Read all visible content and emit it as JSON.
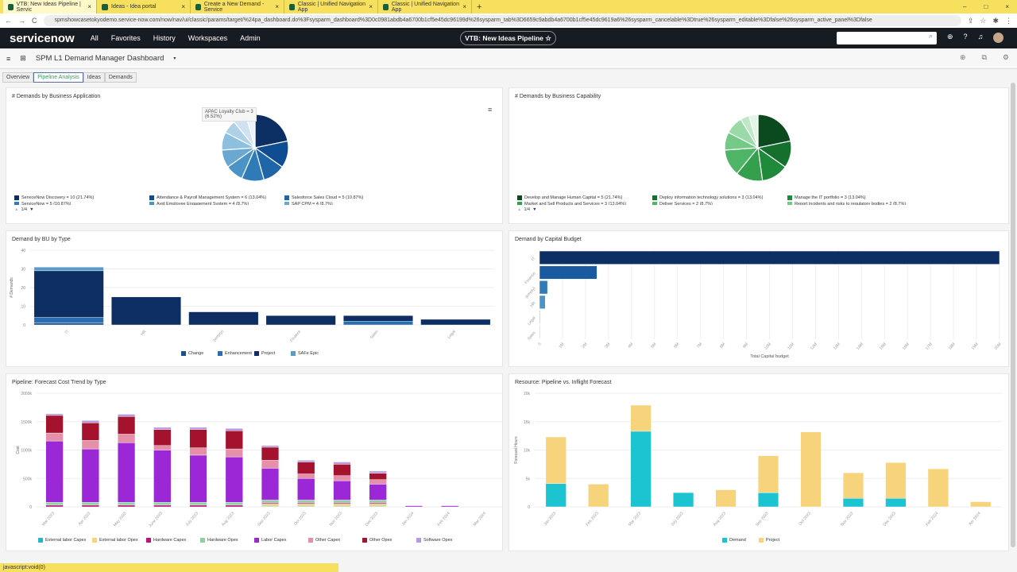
{
  "browser": {
    "tabs": [
      {
        "label": "VTB: New Ideas Pipeline | Servic",
        "active": true
      },
      {
        "label": "Ideas - Idea portal"
      },
      {
        "label": "Create a New Demand - Service"
      },
      {
        "label": "Classic | Unified Navigation App"
      },
      {
        "label": "Classic | Unified Navigation App"
      }
    ],
    "url": "spmshowcasetokyodemo.service-now.com/now/nav/ui/classic/params/target/%24pa_dashboard.do%3Fsysparm_dashboard%3D0c0981abdb4a6700b1cf5e45dc96199d%26sysparm_tab%3D6659c9abdb4a6700b1cf5e45dc9619a6%26sysparm_cancelable%3Dtrue%26sysparm_editable%3Dfalse%26sysparm_active_panel%3Dfalse",
    "status": "javascript:void(0)"
  },
  "nav": {
    "logo": "servicenow",
    "items": [
      "All",
      "Favorites",
      "History",
      "Workspaces",
      "Admin"
    ],
    "pill": "VTB: New Ideas Pipeline ☆"
  },
  "dashboard": {
    "title": "SPM L1 Demand Manager Dashboard",
    "tabs": [
      {
        "label": "Overview"
      },
      {
        "label": "Pipeline Analysis",
        "active": true
      },
      {
        "label": "Ideas"
      },
      {
        "label": "Demands"
      }
    ]
  },
  "chart_data": [
    {
      "type": "pie",
      "title": "# Demands by Business Application",
      "values": [
        10,
        6,
        5,
        5,
        4,
        4,
        4,
        3,
        3,
        2
      ],
      "legend": [
        "ServiceNow Discovery = 10 (21.74%)",
        "Attendance & Payroll Management System = 6 (13.04%)",
        "Salesforce Sales Cloud = 5 (10.87%)"
      ],
      "legend_partial": [
        "ServiceNow = 5 (10.87%)",
        "Avid Employee Engagement System = 4 (8.7%)",
        "SAP CPM = 4 (8.7%)"
      ],
      "tooltip": [
        "APAC Loyalty Club = 3",
        "(6.52%)"
      ],
      "pager": "1/4",
      "colors": [
        "#0b2e63",
        "#0e4d92",
        "#1f65a8",
        "#2f7bb8",
        "#4a93c6",
        "#6aa8d2",
        "#8dbfde",
        "#aed1e8",
        "#cfe2f1",
        "#eaf3fa"
      ]
    },
    {
      "type": "pie",
      "title": "# Demands by Business Capability",
      "values": [
        5,
        3,
        3,
        3,
        3,
        2,
        2,
        1,
        1
      ],
      "legend": [
        "Develop and Manage Human Capital = 5 (21.74%)",
        "Deploy information technology solutions = 3 (13.04%)",
        "Manage the IT portfolio = 3 (13.04%)"
      ],
      "legend_partial": [
        "Market and Sell Products and Services = 3 (13.04%)",
        "Deliver Services = 2 (8.7%)",
        "Report incidents and risks to regulatory bodies = 2 (8.7%)"
      ],
      "pager": "1/4",
      "colors": [
        "#0b4a1e",
        "#15702e",
        "#1f8a3a",
        "#34a04e",
        "#4fb566",
        "#74c987",
        "#9ad9a8",
        "#c0e8c8",
        "#e3f5e6"
      ]
    },
    {
      "type": "bar",
      "stacked": true,
      "title": "Demand by BU by Type",
      "ylabel": "# Demands",
      "ylim": [
        0,
        40
      ],
      "yticks": [
        0,
        10,
        20,
        30,
        40
      ],
      "categories": [
        "IT",
        "HR",
        "(empty)",
        "Finance",
        "Sales",
        "Legal"
      ],
      "series": [
        {
          "name": "Change",
          "color": "#1d4f91",
          "values": [
            1,
            0,
            0,
            0,
            0,
            0
          ]
        },
        {
          "name": "Enhancement",
          "color": "#2a6db0",
          "values": [
            3,
            0,
            0,
            0,
            2,
            0
          ]
        },
        {
          "name": "Project",
          "color": "#0d2e63",
          "values": [
            25,
            15,
            7,
            5,
            3,
            3
          ]
        },
        {
          "name": "SAFe Epic",
          "color": "#5b9cc6",
          "values": [
            2,
            0,
            0,
            0,
            0,
            0
          ]
        }
      ]
    },
    {
      "type": "bar",
      "orientation": "horizontal",
      "title": "Demand by Capital Budget",
      "xlabel": "Total Capital budget",
      "xlim": [
        0,
        20
      ],
      "xticks": [
        "0",
        "1M",
        "2M",
        "3M",
        "4M",
        "5M",
        "6M",
        "7M",
        "8M",
        "9M",
        "10M",
        "11M",
        "12M",
        "13M",
        "14M",
        "15M",
        "16M",
        "17M",
        "18M",
        "19M",
        "20M"
      ],
      "categories": [
        "IT",
        "Finance",
        "(empty)",
        "HR",
        "Legal",
        "Sales"
      ],
      "values_millions": [
        20,
        2.5,
        0.35,
        0.25,
        0.03,
        0.02
      ],
      "colors": [
        "#0d2e63",
        "#1a5aa0",
        "#2f7bb8",
        "#4a93c6",
        "#8dbfde",
        "#aed1e8"
      ]
    },
    {
      "type": "bar",
      "stacked": true,
      "title": "Pipeline: Forecast Cost Trend by Type",
      "ylabel": "Cost",
      "ylim": [
        0,
        2000
      ],
      "yticks": [
        "0",
        "500k",
        "1000k",
        "1500k",
        "2000k"
      ],
      "categories": [
        "Mar 2023",
        "Apr 2023",
        "May 2023",
        "June 2023",
        "July 2023",
        "Aug 2023",
        "Sep 2023",
        "Oct 2023",
        "Nov 2023",
        "Dec 2023",
        "Jan 2024",
        "Feb 2024",
        "Mar 2024"
      ],
      "series": [
        {
          "name": "External labor Capex",
          "color": "#26b8c6",
          "values": [
            0,
            0,
            0,
            0,
            0,
            0,
            10,
            10,
            10,
            10,
            0,
            0,
            0
          ]
        },
        {
          "name": "External labor Opex",
          "color": "#f5d47a",
          "values": [
            0,
            0,
            0,
            0,
            0,
            0,
            40,
            40,
            40,
            40,
            0,
            0,
            0
          ]
        },
        {
          "name": "Hardware Capex",
          "color": "#c2127a",
          "values": [
            30,
            30,
            30,
            30,
            30,
            30,
            20,
            20,
            20,
            20,
            0,
            0,
            0
          ]
        },
        {
          "name": "Hardware Opex",
          "color": "#8fd0a4",
          "values": [
            50,
            50,
            50,
            50,
            50,
            50,
            50,
            50,
            50,
            50,
            0,
            0,
            0
          ]
        },
        {
          "name": "Labor Capex",
          "color": "#9b27d6",
          "values": [
            1080,
            940,
            1050,
            920,
            830,
            800,
            560,
            380,
            340,
            280,
            20,
            20,
            0
          ]
        },
        {
          "name": "Other Capex",
          "color": "#e58fa8",
          "values": [
            140,
            150,
            150,
            80,
            130,
            140,
            140,
            80,
            90,
            80,
            0,
            0,
            0
          ]
        },
        {
          "name": "Other Opex",
          "color": "#a4122e",
          "values": [
            310,
            310,
            310,
            280,
            320,
            320,
            230,
            210,
            200,
            110,
            0,
            0,
            0
          ]
        },
        {
          "name": "Software Opex",
          "color": "#b79be0",
          "values": [
            30,
            40,
            40,
            40,
            40,
            40,
            30,
            30,
            40,
            40,
            0,
            0,
            0
          ]
        }
      ]
    },
    {
      "type": "bar",
      "stacked": true,
      "title": "Resource: Pipeline vs. Inflight Forecast",
      "ylabel": "Forecast Hours",
      "ylim": [
        0,
        20000
      ],
      "yticks": [
        "0",
        "5k",
        "10k",
        "15k",
        "20k"
      ],
      "categories": [
        "Jan 2023",
        "Feb 2023",
        "Mar 2023",
        "July 2023",
        "Aug 2023",
        "Sep 2023",
        "Oct 2023",
        "Nov 2023",
        "Dec 2023",
        "Feb 2024",
        "Apr 2024"
      ],
      "series": [
        {
          "name": "Demand",
          "color": "#1cc3d1",
          "values": [
            4100,
            0,
            13300,
            2500,
            0,
            2500,
            0,
            1500,
            1500,
            0,
            0
          ]
        },
        {
          "name": "Project",
          "color": "#f7d37c",
          "values": [
            8200,
            4000,
            4600,
            0,
            3000,
            6500,
            13200,
            4500,
            6300,
            6700,
            900
          ]
        }
      ]
    }
  ]
}
